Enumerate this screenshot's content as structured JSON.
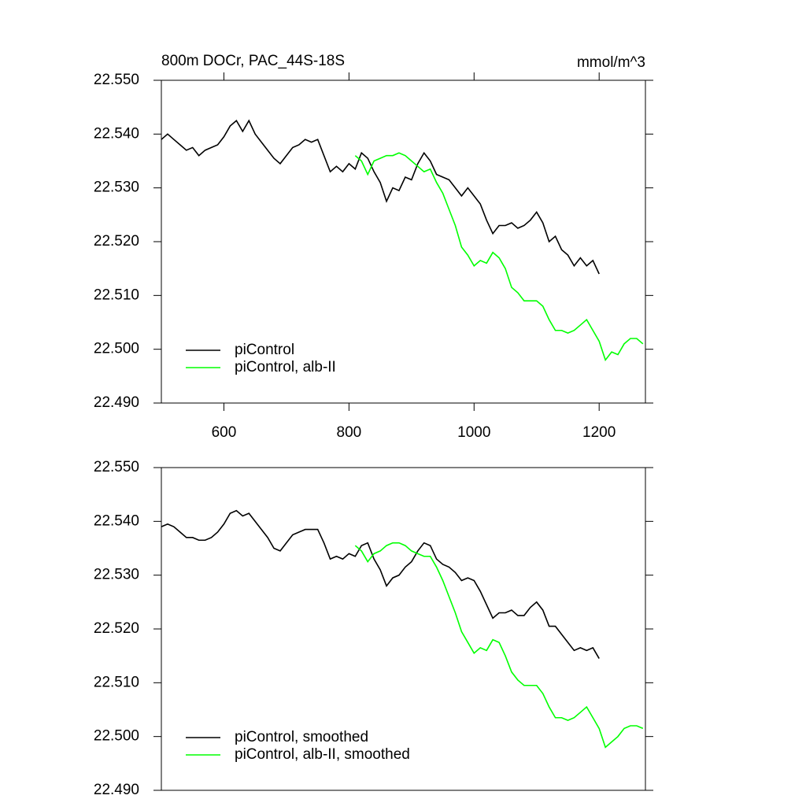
{
  "chart_data": [
    {
      "type": "line",
      "title": "800m DOCr, PAC_44S-18S",
      "units": "mmol/m^3",
      "xlim": [
        500,
        1274
      ],
      "xticks": [
        600,
        800,
        1000,
        1200
      ],
      "ylim": [
        22.49,
        22.55
      ],
      "yticks": [
        {
          "value": 22.49,
          "label": "22.490"
        },
        {
          "value": 22.5,
          "label": "22.500"
        },
        {
          "value": 22.51,
          "label": "22.510"
        },
        {
          "value": 22.52,
          "label": "22.520"
        },
        {
          "value": 22.53,
          "label": "22.530"
        },
        {
          "value": 22.54,
          "label": "22.540"
        },
        {
          "value": 22.55,
          "label": "22.550"
        }
      ],
      "legend": "lower-left",
      "series": [
        {
          "name": "piControl",
          "color": "#000000",
          "x": [
            500,
            510,
            520,
            530,
            540,
            550,
            560,
            570,
            580,
            590,
            600,
            610,
            620,
            630,
            640,
            650,
            660,
            670,
            680,
            690,
            700,
            710,
            720,
            730,
            740,
            750,
            760,
            770,
            780,
            790,
            800,
            810,
            820,
            830,
            840,
            850,
            860,
            870,
            880,
            890,
            900,
            910,
            920,
            930,
            940,
            950,
            960,
            970,
            980,
            990,
            1000,
            1010,
            1020,
            1030,
            1040,
            1050,
            1060,
            1070,
            1080,
            1090,
            1100,
            1110,
            1120,
            1130,
            1140,
            1150,
            1160,
            1170,
            1180,
            1190,
            1200
          ],
          "values": [
            22.539,
            22.54,
            22.539,
            22.538,
            22.537,
            22.5375,
            22.536,
            22.537,
            22.5375,
            22.538,
            22.5395,
            22.5415,
            22.5425,
            22.5405,
            22.5425,
            22.54,
            22.5385,
            22.537,
            22.5355,
            22.5345,
            22.536,
            22.5375,
            22.538,
            22.539,
            22.5385,
            22.539,
            22.536,
            22.533,
            22.534,
            22.533,
            22.5345,
            22.5335,
            22.5365,
            22.5355,
            22.533,
            22.531,
            22.5275,
            22.53,
            22.5295,
            22.532,
            22.5315,
            22.5345,
            22.5365,
            22.535,
            22.5325,
            22.532,
            22.5315,
            22.53,
            22.5285,
            22.53,
            22.5285,
            22.527,
            22.524,
            22.5215,
            22.523,
            22.523,
            22.5235,
            22.5225,
            22.523,
            22.524,
            22.5255,
            22.5235,
            22.52,
            22.521,
            22.5185,
            22.5175,
            22.5155,
            22.517,
            22.5155,
            22.5165,
            22.514
          ]
        },
        {
          "name": "piControl, alb-II",
          "color": "#00ff00",
          "x": [
            810,
            820,
            830,
            840,
            850,
            860,
            870,
            880,
            890,
            900,
            910,
            920,
            930,
            940,
            950,
            960,
            970,
            980,
            990,
            1000,
            1010,
            1020,
            1030,
            1040,
            1050,
            1060,
            1070,
            1080,
            1090,
            1100,
            1110,
            1120,
            1130,
            1140,
            1150,
            1160,
            1170,
            1180,
            1190,
            1200,
            1210,
            1220,
            1230,
            1240,
            1250,
            1260,
            1270
          ],
          "values": [
            22.536,
            22.535,
            22.5325,
            22.535,
            22.5355,
            22.536,
            22.536,
            22.5365,
            22.536,
            22.535,
            22.534,
            22.533,
            22.5335,
            22.531,
            22.529,
            22.526,
            22.523,
            22.519,
            22.5175,
            22.5155,
            22.5165,
            22.516,
            22.518,
            22.517,
            22.515,
            22.5115,
            22.5105,
            22.509,
            22.509,
            22.509,
            22.508,
            22.5055,
            22.5035,
            22.5035,
            22.503,
            22.5035,
            22.5045,
            22.5055,
            22.5035,
            22.5015,
            22.498,
            22.4995,
            22.499,
            22.501,
            22.502,
            22.502,
            22.501
          ]
        }
      ]
    },
    {
      "type": "line",
      "xlim": [
        500,
        1274
      ],
      "ylim": [
        22.49,
        22.55
      ],
      "yticks": [
        {
          "value": 22.49,
          "label": "22.490"
        },
        {
          "value": 22.5,
          "label": "22.500"
        },
        {
          "value": 22.51,
          "label": "22.510"
        },
        {
          "value": 22.52,
          "label": "22.520"
        },
        {
          "value": 22.53,
          "label": "22.530"
        },
        {
          "value": 22.54,
          "label": "22.540"
        },
        {
          "value": 22.55,
          "label": "22.550"
        }
      ],
      "legend": "lower-left",
      "series": [
        {
          "name": "piControl, smoothed",
          "color": "#000000",
          "x": [
            500,
            510,
            520,
            530,
            540,
            550,
            560,
            570,
            580,
            590,
            600,
            610,
            620,
            630,
            640,
            650,
            660,
            670,
            680,
            690,
            700,
            710,
            720,
            730,
            740,
            750,
            760,
            770,
            780,
            790,
            800,
            810,
            820,
            830,
            840,
            850,
            860,
            870,
            880,
            890,
            900,
            910,
            920,
            930,
            940,
            950,
            960,
            970,
            980,
            990,
            1000,
            1010,
            1020,
            1030,
            1040,
            1050,
            1060,
            1070,
            1080,
            1090,
            1100,
            1110,
            1120,
            1130,
            1140,
            1150,
            1160,
            1170,
            1180,
            1190,
            1200
          ],
          "values": [
            22.539,
            22.5395,
            22.539,
            22.538,
            22.537,
            22.537,
            22.5365,
            22.5365,
            22.537,
            22.538,
            22.5395,
            22.5415,
            22.542,
            22.541,
            22.5415,
            22.54,
            22.5385,
            22.537,
            22.535,
            22.5345,
            22.536,
            22.5375,
            22.538,
            22.5385,
            22.5385,
            22.5385,
            22.536,
            22.533,
            22.5335,
            22.533,
            22.534,
            22.5335,
            22.5355,
            22.536,
            22.533,
            22.531,
            22.528,
            22.5295,
            22.53,
            22.5315,
            22.5325,
            22.5345,
            22.536,
            22.5355,
            22.533,
            22.532,
            22.5315,
            22.5305,
            22.529,
            22.5295,
            22.529,
            22.527,
            22.5245,
            22.522,
            22.523,
            22.523,
            22.5235,
            22.5225,
            22.5225,
            22.524,
            22.525,
            22.5235,
            22.5205,
            22.5205,
            22.519,
            22.5175,
            22.516,
            22.5165,
            22.516,
            22.5165,
            22.5145
          ]
        },
        {
          "name": "piControl, alb-II, smoothed",
          "color": "#00ff00",
          "x": [
            810,
            820,
            830,
            840,
            850,
            860,
            870,
            880,
            890,
            900,
            910,
            920,
            930,
            940,
            950,
            960,
            970,
            980,
            990,
            1000,
            1010,
            1020,
            1030,
            1040,
            1050,
            1060,
            1070,
            1080,
            1090,
            1100,
            1110,
            1120,
            1130,
            1140,
            1150,
            1160,
            1170,
            1180,
            1190,
            1200,
            1210,
            1220,
            1230,
            1240,
            1250,
            1260,
            1270
          ],
          "values": [
            22.5355,
            22.5345,
            22.5325,
            22.534,
            22.5345,
            22.5355,
            22.536,
            22.536,
            22.5355,
            22.5345,
            22.534,
            22.5335,
            22.5335,
            22.5315,
            22.529,
            22.526,
            22.523,
            22.5195,
            22.5175,
            22.5155,
            22.5165,
            22.516,
            22.518,
            22.5175,
            22.515,
            22.512,
            22.5105,
            22.5095,
            22.5095,
            22.5095,
            22.508,
            22.5055,
            22.5035,
            22.5035,
            22.503,
            22.5035,
            22.5045,
            22.5055,
            22.5035,
            22.5015,
            22.498,
            22.499,
            22.5,
            22.5015,
            22.502,
            22.502,
            22.5015
          ]
        }
      ]
    }
  ]
}
